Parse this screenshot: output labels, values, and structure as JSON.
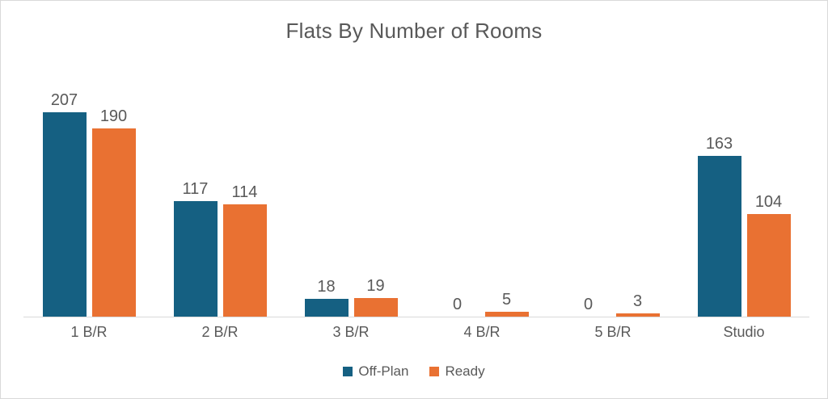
{
  "chart_data": {
    "type": "bar",
    "title": "Flats By Number of Rooms",
    "categories": [
      "1 B/R",
      "2 B/R",
      "3 B/R",
      "4 B/R",
      "5 B/R",
      "Studio"
    ],
    "series": [
      {
        "name": "Off-Plan",
        "color": "#156082",
        "values": [
          207,
          117,
          18,
          0,
          0,
          163
        ]
      },
      {
        "name": "Ready",
        "color": "#E97132",
        "values": [
          190,
          114,
          19,
          5,
          3,
          104
        ]
      }
    ],
    "xlabel": "",
    "ylabel": "",
    "ylim": [
      0,
      250
    ],
    "grid": false,
    "data_labels": true,
    "legend_position": "bottom"
  },
  "colors": {
    "text": "#595959",
    "axis_line": "#D9D9D9",
    "frame_border": "#D9D9D9",
    "background": "#FFFFFF",
    "series_offplan": "#156082",
    "series_ready": "#E97132"
  }
}
